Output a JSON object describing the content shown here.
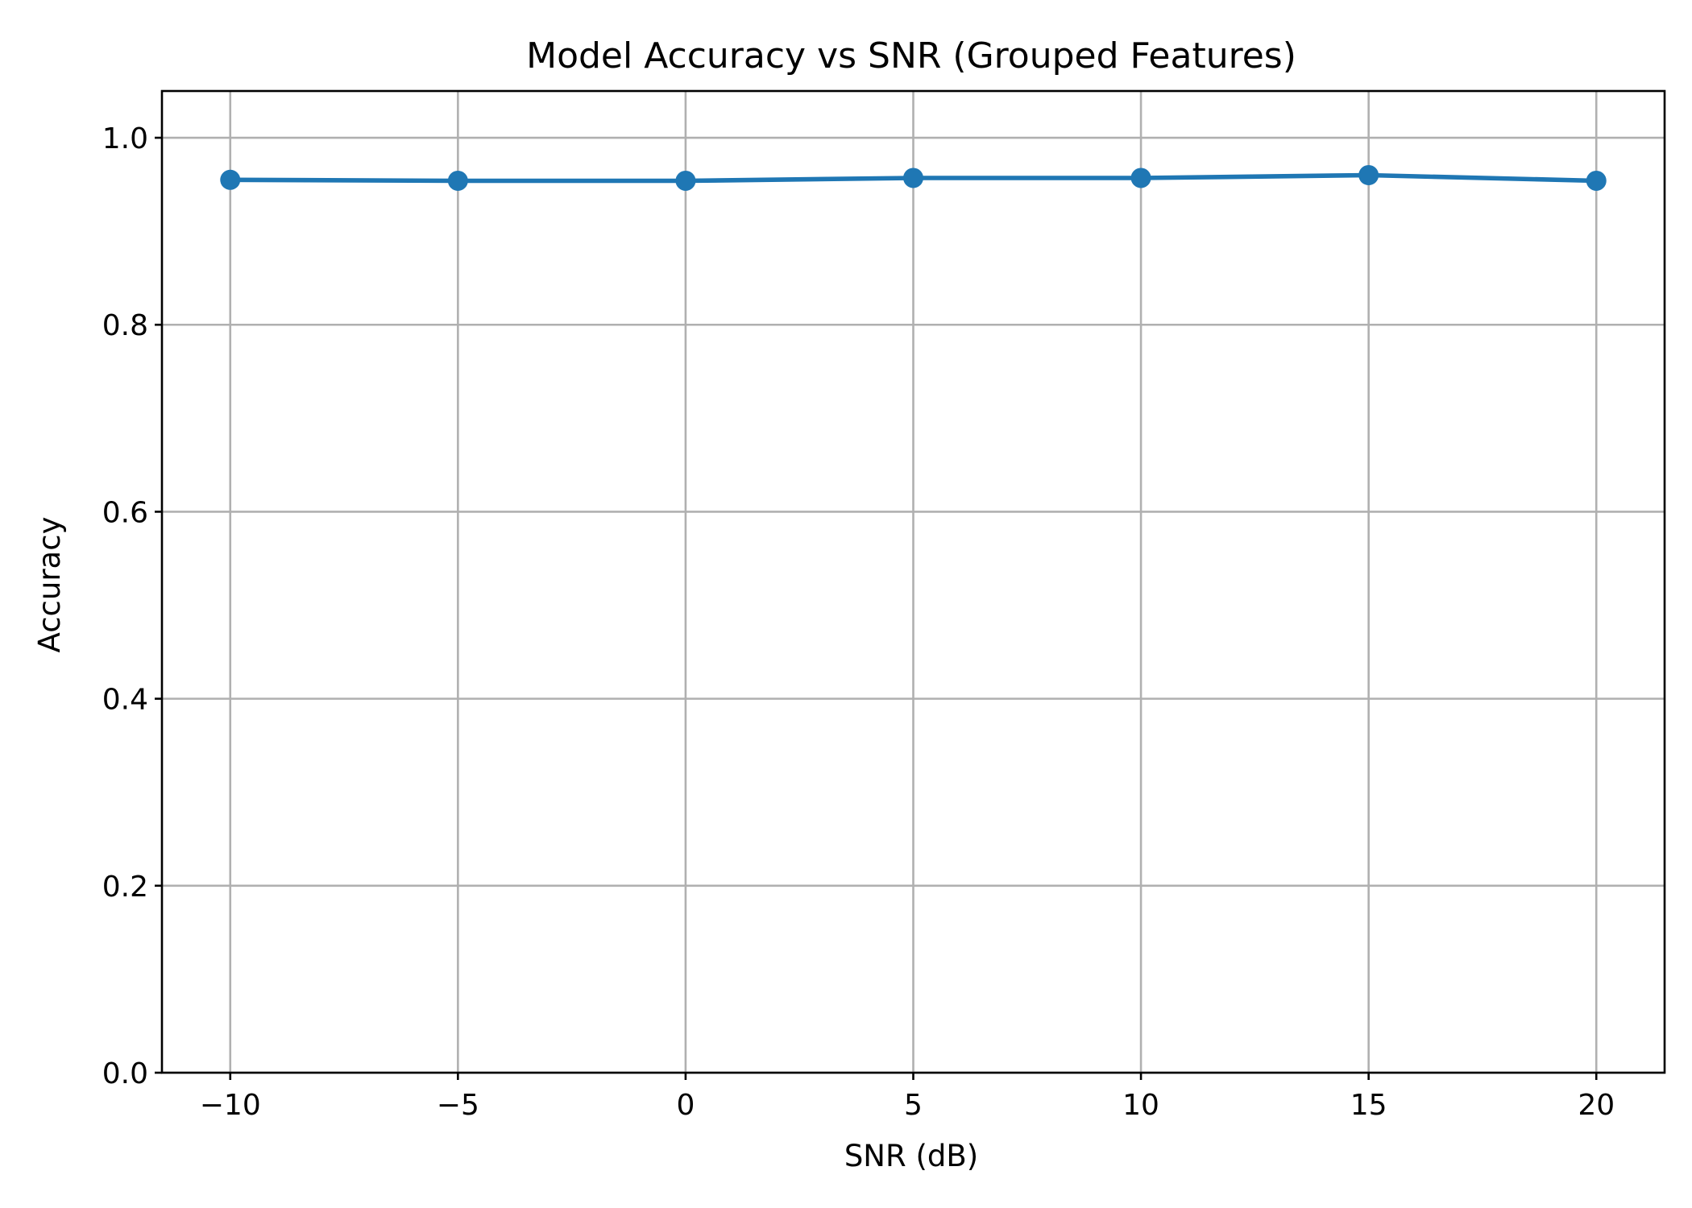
{
  "chart_data": {
    "type": "line",
    "title": "Model Accuracy vs SNR (Grouped Features)",
    "xlabel": "SNR (dB)",
    "ylabel": "Accuracy",
    "x": [
      -10,
      -5,
      0,
      5,
      10,
      15,
      20
    ],
    "series": [
      {
        "values": [
          0.955,
          0.954,
          0.954,
          0.957,
          0.957,
          0.96,
          0.954
        ],
        "color": "#1f77b4",
        "marker": "circle"
      }
    ],
    "xticks": [
      -10,
      -5,
      0,
      5,
      10,
      15,
      20
    ],
    "xtick_labels": [
      "−10",
      "−5",
      "0",
      "5",
      "10",
      "15",
      "20"
    ],
    "yticks": [
      0.0,
      0.2,
      0.4,
      0.6,
      0.8,
      1.0
    ],
    "ytick_labels": [
      "0.0",
      "0.2",
      "0.4",
      "0.6",
      "0.8",
      "1.0"
    ],
    "xlim": [
      -11.5,
      21.5
    ],
    "ylim": [
      0.0,
      1.05
    ],
    "grid": true,
    "legend": "none"
  }
}
